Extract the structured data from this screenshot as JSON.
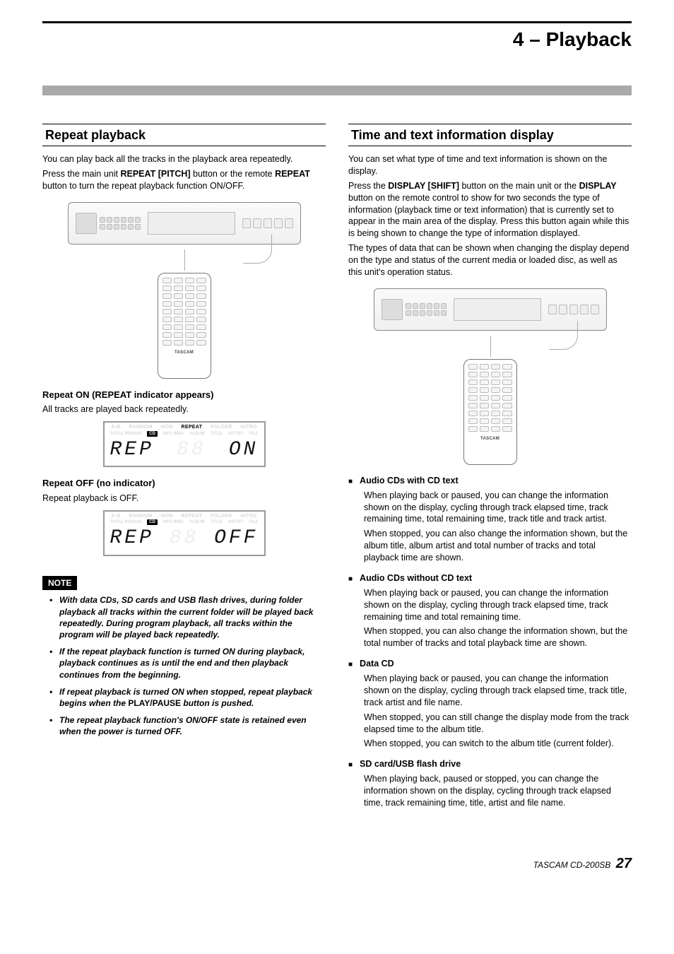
{
  "chapter": "4 – Playback",
  "left": {
    "heading": "Repeat playback",
    "p1": "You can play back all the tracks in the playback area repeatedly.",
    "p2a": "Press the main unit ",
    "p2b": "REPEAT [PITCH]",
    "p2c": " button or the remote ",
    "p2d": "REPEAT",
    "p2e": " button to turn the repeat playback function ON/OFF.",
    "repeat_on_h": "Repeat ON (REPEAT indicator appears)",
    "repeat_on_p": "All tracks are played back repeatedly.",
    "repeat_off_h": "Repeat OFF (no indicator)",
    "repeat_off_p": "Repeat playback is OFF.",
    "note_label": "NOTE",
    "notes": [
      "With data CDs, SD cards and USB flash drives, during folder playback all tracks within the current folder will be played back repeatedly. During program playback, all tracks within the program will be played back repeatedly.",
      "If the repeat playback function is turned ON during playback, playback continues as is until the end and then playback continues from the beginning."
    ],
    "note3a": "If repeat playback is turned ON when stopped, repeat playback begins when the ",
    "note3b": "PLAY/PAUSE",
    "note3c": " button is pushed.",
    "note4": "The repeat playback function's ON/OFF state is retained even when the power is turned OFF."
  },
  "right": {
    "heading": "Time and text information display",
    "p1": "You can set what type of time and text information is shown on the display.",
    "p2a": "Press the ",
    "p2b": "DISPLAY [SHIFT]",
    "p2c": " button on the main unit or the ",
    "p2d": "DISPLAY",
    "p2e": " button on the remote control to show for two seconds the type of information (playback time or text information) that is currently set to appear in the main area of the display. Press this button again while this is being shown to change the type of information displayed.",
    "p3": "The types of data that can be shown when changing the display depend on the type and status of the current media or loaded disc, as well as this unit's operation status.",
    "s1_h": "Audio CDs with CD text",
    "s1_p1": "When playing back or paused, you can change the information shown on the display, cycling through track elapsed time, track remaining time, total remaining time, track title and track artist.",
    "s1_p2": "When stopped, you can also change the information shown, but the album title, album artist and total number of tracks and total playback time are shown.",
    "s2_h": "Audio CDs without CD text",
    "s2_p1": "When playing back or paused, you can change the information shown on the display, cycling through track elapsed time, track remaining time and total remaining time.",
    "s2_p2": "When stopped, you can also change the information shown, but the total number of tracks and total playback time are shown.",
    "s3_h": "Data CD",
    "s3_p1": "When playing back or paused, you can change the information shown on the display, cycling through track elapsed time, track title, track artist and file name.",
    "s3_p2": "When stopped, you can still change the display mode from the track elapsed time to the album title.",
    "s3_p3": "When stopped, you can switch to the album title (current folder).",
    "s4_h": "SD card/USB flash drive",
    "s4_p1": "When playing back, paused or stopped, you can change the information shown on the display, cycling through track elapsed time, track remaining time, title, artist and file name."
  },
  "lcd": {
    "ghost_labels": [
      "A-B",
      "RANDOM",
      "MON",
      "FOLDER",
      "INTRO",
      "ALBUM",
      "TITLE",
      "ARTIST",
      "FILE"
    ],
    "repeat_label": "REPEAT",
    "cd_label": "CD",
    "seg_on_left": "REP",
    "seg_on_right": " ON",
    "seg_off_left": "REP",
    "seg_off_right": "OFF"
  },
  "remote_brand": "TASCAM",
  "footer": {
    "brand": "TASCAM  CD-200SB",
    "page": "27"
  }
}
